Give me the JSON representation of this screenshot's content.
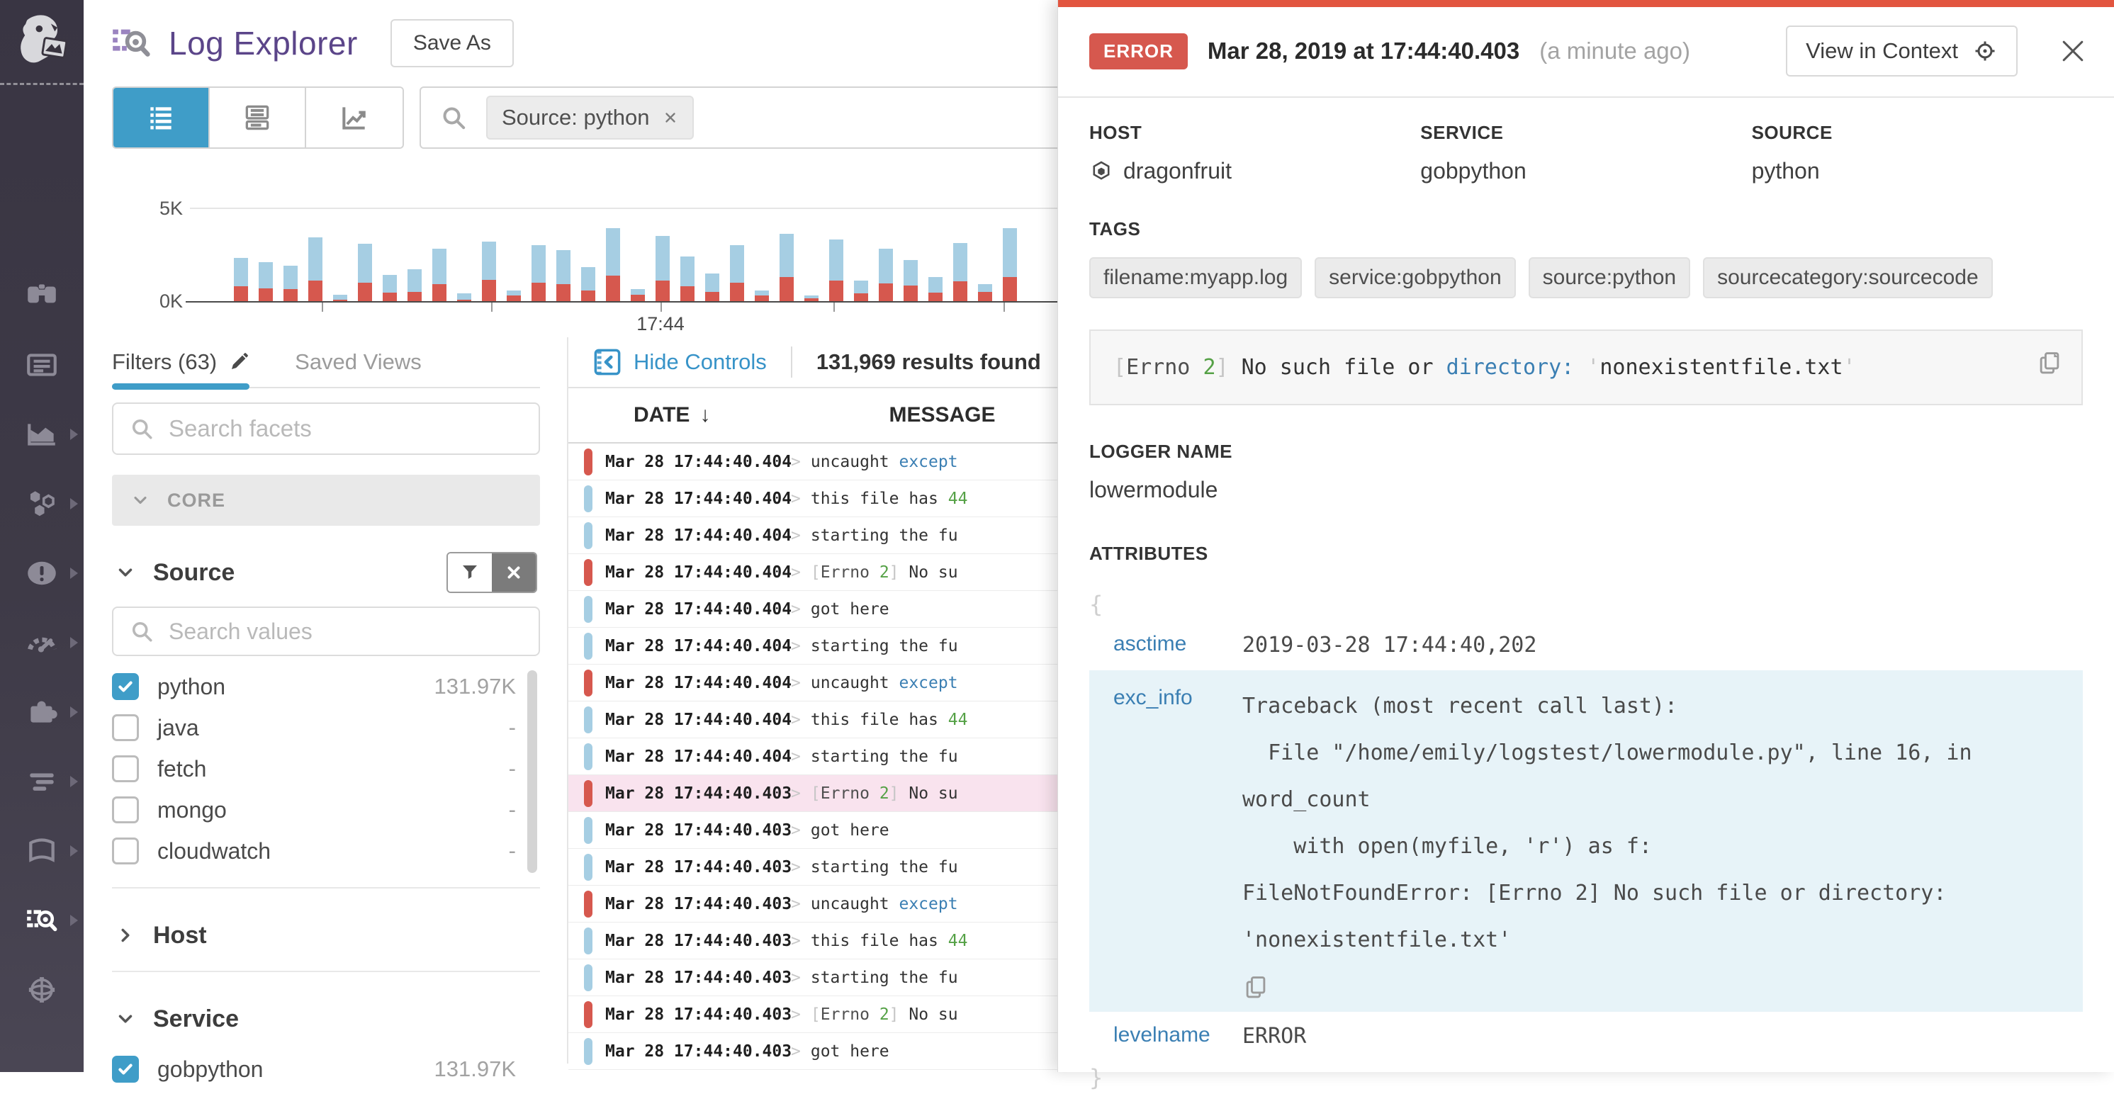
{
  "colors": {
    "accent_blue": "#3f9dc8",
    "error_red": "#d6584e",
    "info_blue": "#a6cee3",
    "selected_row_pink": "#f9e3ee",
    "link_blue": "#3b7fb3",
    "value_green": "#55a146",
    "panel_strip_red": "#e2553f",
    "title_purple": "#5b4589"
  },
  "sidebar": {
    "logo_icon": "datadog-dog-logo",
    "items": [
      {
        "icon": "watchdog-binoculars-icon",
        "chevron": false,
        "active": false
      },
      {
        "icon": "dashboards-icon",
        "chevron": false,
        "active": false
      },
      {
        "icon": "metrics-icon",
        "chevron": true,
        "active": false
      },
      {
        "icon": "infrastructure-icon",
        "chevron": true,
        "active": false
      },
      {
        "icon": "monitors-icon",
        "chevron": true,
        "active": false
      },
      {
        "icon": "apm-gauge-icon",
        "chevron": true,
        "active": false
      },
      {
        "icon": "integrations-puzzle-icon",
        "chevron": true,
        "active": false
      },
      {
        "icon": "pipelines-icon",
        "chevron": true,
        "active": false
      },
      {
        "icon": "notebooks-icon",
        "chevron": true,
        "active": false
      },
      {
        "icon": "logs-icon",
        "chevron": true,
        "active": true
      },
      {
        "icon": "settings-globe-icon",
        "chevron": false,
        "active": false
      }
    ]
  },
  "header": {
    "title_icon": "log-explorer-icon",
    "title": "Log Explorer",
    "save_as_label": "Save As"
  },
  "toolbar": {
    "view_modes": [
      {
        "icon": "list-view-icon",
        "active": true
      },
      {
        "icon": "detail-view-icon",
        "active": false
      },
      {
        "icon": "analytics-view-icon",
        "active": false
      }
    ],
    "search_icon": "magnifier-icon",
    "search_token": "Source: python",
    "token_remove_icon": "close-x-icon"
  },
  "chart_data": {
    "type": "bar",
    "stacked": true,
    "title": "log volume over time",
    "ylim": [
      0,
      5000
    ],
    "y_tick_labels": [
      "5K",
      "0K"
    ],
    "x_tick_labels": [
      "17:44"
    ],
    "legend": "off",
    "grid": "single horizontal gridline at 5K",
    "series": [
      {
        "name": "error",
        "color": "#d6584e",
        "values": [
          800,
          700,
          650,
          1100,
          70,
          1000,
          450,
          500,
          900,
          70,
          1150,
          300,
          1000,
          900,
          550,
          1350,
          350,
          1100,
          800,
          500,
          1000,
          300,
          1300,
          150,
          1100,
          400,
          950,
          850,
          450,
          1050,
          500,
          1300
        ]
      },
      {
        "name": "info",
        "color": "#a6cee3",
        "values": [
          1500,
          1400,
          1250,
          2300,
          280,
          2100,
          950,
          1200,
          1900,
          330,
          2050,
          250,
          2000,
          1800,
          1250,
          2550,
          300,
          2400,
          1600,
          1000,
          2000,
          250,
          2300,
          150,
          2200,
          700,
          1850,
          1350,
          850,
          2050,
          400,
          2600
        ]
      }
    ]
  },
  "facets": {
    "tabs": [
      {
        "label": "Filters (63)",
        "icon": "pencil-icon",
        "active": true
      },
      {
        "label": "Saved Views",
        "active": false
      }
    ],
    "search_facets_placeholder": "Search facets",
    "core_label": "CORE",
    "search_values_placeholder": "Search values",
    "groups": [
      {
        "name": "Source",
        "expanded": true,
        "values": [
          {
            "label": "python",
            "checked": true,
            "count": "131.97K"
          },
          {
            "label": "java",
            "checked": false,
            "count": "-"
          },
          {
            "label": "fetch",
            "checked": false,
            "count": "-"
          },
          {
            "label": "mongo",
            "checked": false,
            "count": "-"
          },
          {
            "label": "cloudwatch",
            "checked": false,
            "count": "-"
          }
        ]
      },
      {
        "name": "Host",
        "expanded": false,
        "values": []
      },
      {
        "name": "Service",
        "expanded": true,
        "values": [
          {
            "label": "gobpython",
            "checked": true,
            "count": "131.97K"
          }
        ]
      }
    ]
  },
  "logstream": {
    "hide_controls_label": "Hide Controls",
    "results_text": "131,969 results found",
    "columns": {
      "date": "DATE",
      "message": "MESSAGE"
    },
    "sort_arrow": "↓",
    "rows": [
      {
        "severity": "error",
        "date": "Mar 28 17:44:40.404",
        "selected": false,
        "segments": [
          {
            "t": "uncaught ",
            "c": "t"
          },
          {
            "t": "except",
            "c": "lnk"
          }
        ]
      },
      {
        "severity": "info",
        "date": "Mar 28 17:44:40.404",
        "selected": false,
        "segments": [
          {
            "t": "this file has ",
            "c": "t"
          },
          {
            "t": "44",
            "c": "num"
          }
        ]
      },
      {
        "severity": "info",
        "date": "Mar 28 17:44:40.404",
        "selected": false,
        "segments": [
          {
            "t": "starting the fu",
            "c": "t"
          }
        ]
      },
      {
        "severity": "error",
        "date": "Mar 28 17:44:40.404",
        "selected": false,
        "segments": [
          {
            "t": "[",
            "c": "br"
          },
          {
            "t": "Errno ",
            "c": "err"
          },
          {
            "t": "2",
            "c": "num"
          },
          {
            "t": "]",
            "c": "br"
          },
          {
            "t": "  No su",
            "c": "t"
          }
        ]
      },
      {
        "severity": "info",
        "date": "Mar 28 17:44:40.404",
        "selected": false,
        "segments": [
          {
            "t": "got here",
            "c": "t"
          }
        ]
      },
      {
        "severity": "info",
        "date": "Mar 28 17:44:40.404",
        "selected": false,
        "segments": [
          {
            "t": "starting the fu",
            "c": "t"
          }
        ]
      },
      {
        "severity": "error",
        "date": "Mar 28 17:44:40.404",
        "selected": false,
        "segments": [
          {
            "t": "uncaught ",
            "c": "t"
          },
          {
            "t": "except",
            "c": "lnk"
          }
        ]
      },
      {
        "severity": "info",
        "date": "Mar 28 17:44:40.404",
        "selected": false,
        "segments": [
          {
            "t": "this file has ",
            "c": "t"
          },
          {
            "t": "44",
            "c": "num"
          }
        ]
      },
      {
        "severity": "info",
        "date": "Mar 28 17:44:40.404",
        "selected": false,
        "segments": [
          {
            "t": "starting the fu",
            "c": "t"
          }
        ]
      },
      {
        "severity": "error",
        "date": "Mar 28 17:44:40.403",
        "selected": true,
        "segments": [
          {
            "t": "[",
            "c": "br"
          },
          {
            "t": "Errno ",
            "c": "err"
          },
          {
            "t": "2",
            "c": "num"
          },
          {
            "t": "]",
            "c": "br"
          },
          {
            "t": "  No su",
            "c": "t"
          }
        ]
      },
      {
        "severity": "info",
        "date": "Mar 28 17:44:40.403",
        "selected": false,
        "segments": [
          {
            "t": "got here",
            "c": "t"
          }
        ]
      },
      {
        "severity": "info",
        "date": "Mar 28 17:44:40.403",
        "selected": false,
        "segments": [
          {
            "t": "starting the fu",
            "c": "t"
          }
        ]
      },
      {
        "severity": "error",
        "date": "Mar 28 17:44:40.403",
        "selected": false,
        "segments": [
          {
            "t": "uncaught ",
            "c": "t"
          },
          {
            "t": "except",
            "c": "lnk"
          }
        ]
      },
      {
        "severity": "info",
        "date": "Mar 28 17:44:40.403",
        "selected": false,
        "segments": [
          {
            "t": "this file has ",
            "c": "t"
          },
          {
            "t": "44",
            "c": "num"
          }
        ]
      },
      {
        "severity": "info",
        "date": "Mar 28 17:44:40.403",
        "selected": false,
        "segments": [
          {
            "t": "starting the fu",
            "c": "t"
          }
        ]
      },
      {
        "severity": "error",
        "date": "Mar 28 17:44:40.403",
        "selected": false,
        "segments": [
          {
            "t": "[",
            "c": "br"
          },
          {
            "t": "Errno ",
            "c": "err"
          },
          {
            "t": "2",
            "c": "num"
          },
          {
            "t": "]",
            "c": "br"
          },
          {
            "t": "  No su",
            "c": "t"
          }
        ]
      },
      {
        "severity": "info",
        "date": "Mar 28 17:44:40.403",
        "selected": false,
        "segments": [
          {
            "t": "got here",
            "c": "t"
          }
        ]
      }
    ]
  },
  "detail_panel": {
    "status": "ERROR",
    "timestamp": "Mar 28, 2019 at 17:44:40.403",
    "relative_time": "(a minute ago)",
    "view_in_context_label": "View in Context",
    "view_in_context_icon": "target-icon",
    "close_icon": "close-x-icon",
    "fields": [
      {
        "label": "HOST",
        "value": "dragonfruit",
        "icon": "hexagon-host-icon"
      },
      {
        "label": "SERVICE",
        "value": "gobpython"
      },
      {
        "label": "SOURCE",
        "value": "python"
      }
    ],
    "tags_label": "TAGS",
    "tags": [
      "filename:myapp.log",
      "service:gobpython",
      "source:python",
      "sourcecategory:sourcecode"
    ],
    "message_segments": [
      {
        "t": "[",
        "c": "br"
      },
      {
        "t": "Errno ",
        "c": "err"
      },
      {
        "t": "2",
        "c": "num"
      },
      {
        "t": "]",
        "c": "br"
      },
      {
        "t": " No such file or ",
        "c": "t"
      },
      {
        "t": "directory:",
        "c": "lnk"
      },
      {
        "t": " ",
        "c": "t"
      },
      {
        "t": "'",
        "c": "br"
      },
      {
        "t": "nonexistentfile.txt",
        "c": "t"
      },
      {
        "t": "'",
        "c": "br"
      }
    ],
    "copy_icon": "copy-icon",
    "logger_name_label": "LOGGER NAME",
    "logger_name": "lowermodule",
    "attributes_label": "ATTRIBUTES",
    "attributes_open": "{",
    "attributes_close": "}",
    "attributes": [
      {
        "key": "asctime",
        "value": "2019-03-28 17:44:40,202",
        "highlight": false,
        "copy": false
      },
      {
        "key": "exc_info",
        "value": "Traceback (most recent call last):\n  File \"/home/emily/logstest/lowermodule.py\", line 16, in word_count\n    with open(myfile, 'r') as f:\nFileNotFoundError: [Errno 2] No such file or directory: 'nonexistentfile.txt'",
        "highlight": true,
        "copy": true
      },
      {
        "key": "levelname",
        "value": "ERROR",
        "highlight": false,
        "copy": false
      }
    ]
  }
}
